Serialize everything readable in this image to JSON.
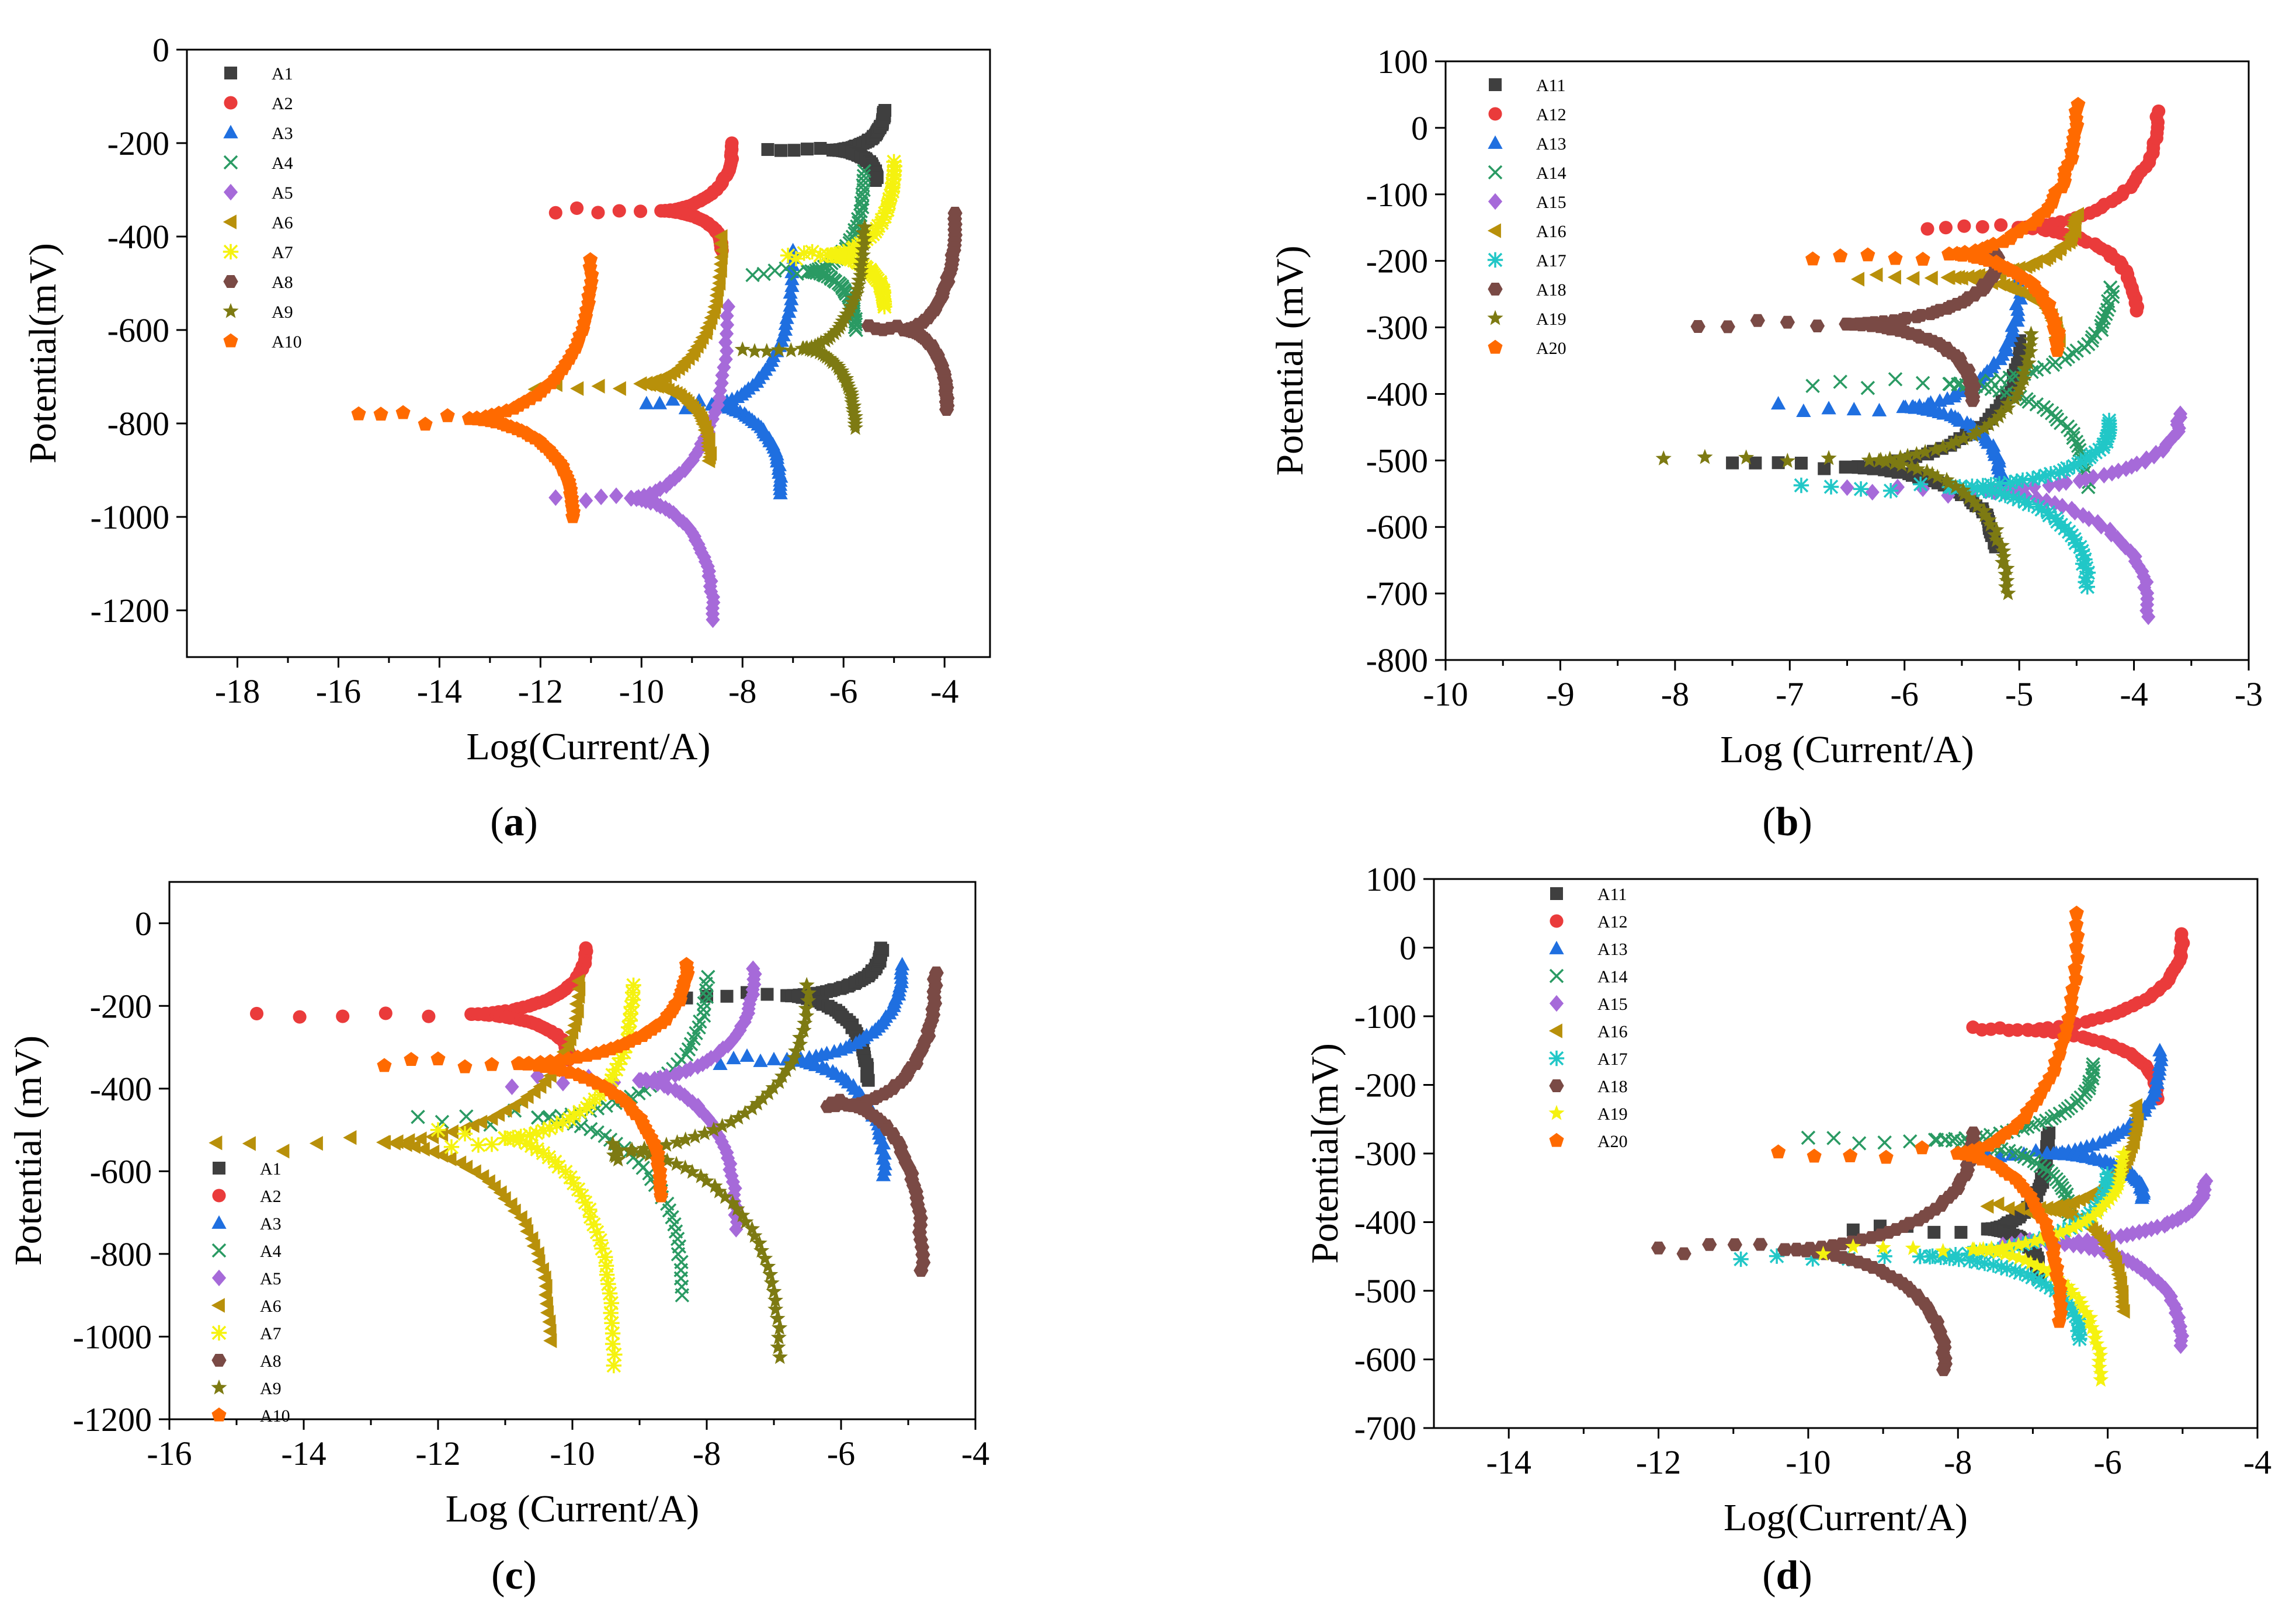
{
  "chart_data": [
    {
      "type": "scatter",
      "panel": "a",
      "caption_letter": "a",
      "xlabel": "Log(Current/A)",
      "ylabel": "Potential(mV)",
      "xlim": [
        -19,
        -3.1
      ],
      "ylim": [
        -1300,
        0
      ],
      "xticks": [
        -18,
        -16,
        -14,
        -12,
        -10,
        -8,
        -6,
        -4
      ],
      "yticks": [
        0,
        -200,
        -400,
        -600,
        -800,
        -1000,
        -1200
      ],
      "legend_position": "top-left",
      "series": [
        {
          "name": "A1",
          "marker": "square",
          "color": "#3f3f3f",
          "ecorr": -215,
          "icorr": -6.2,
          "xmin": -7.5,
          "xmax": -5.2,
          "ymin": -280,
          "ymax": -130
        },
        {
          "name": "A2",
          "marker": "circle",
          "color": "#ea3b3b",
          "ecorr": -345,
          "icorr": -9.6,
          "xmin": -11.7,
          "xmax": -8.2,
          "ymin": -430,
          "ymax": -200
        },
        {
          "name": "A3",
          "marker": "triangle",
          "color": "#1f6fe0",
          "ecorr": -760,
          "icorr": -8.6,
          "xmin": -9.9,
          "xmax": -7.0,
          "ymin": -950,
          "ymax": -430
        },
        {
          "name": "A4",
          "marker": "x",
          "color": "#2a9a63",
          "ecorr": -475,
          "icorr": -6.7,
          "xmin": -7.8,
          "xmax": -5.6,
          "ymin": -600,
          "ymax": -260
        },
        {
          "name": "A5",
          "marker": "diamond",
          "color": "#a66ad9",
          "ecorr": -960,
          "icorr": -10.2,
          "xmin": -11.7,
          "xmax": -8.3,
          "ymin": -1220,
          "ymax": -550
        },
        {
          "name": "A6",
          "marker": "tri-left",
          "color": "#b8900a",
          "ecorr": -715,
          "icorr": -10.0,
          "xmin": -12.1,
          "xmax": -8.4,
          "ymin": -880,
          "ymax": -400
        },
        {
          "name": "A7",
          "marker": "asterisk",
          "color": "#f5f20f",
          "ecorr": -440,
          "icorr": -6.3,
          "xmin": -7.1,
          "xmax": -5.0,
          "ymin": -550,
          "ymax": -240
        },
        {
          "name": "A8",
          "marker": "hexagon",
          "color": "#7a4a45",
          "ecorr": -600,
          "icorr": -4.8,
          "xmin": -5.5,
          "xmax": -3.8,
          "ymin": -770,
          "ymax": -350
        },
        {
          "name": "A9",
          "marker": "star",
          "color": "#7d7a12",
          "ecorr": -640,
          "icorr": -6.8,
          "xmin": -8.0,
          "xmax": -5.6,
          "ymin": -810,
          "ymax": -380
        },
        {
          "name": "A10",
          "marker": "pentagon",
          "color": "#ff6a00",
          "ecorr": -790,
          "icorr": -13.4,
          "xmin": -15.6,
          "xmax": -11.0,
          "ymin": -1000,
          "ymax": -450
        }
      ]
    },
    {
      "type": "scatter",
      "panel": "b",
      "caption_letter": "b",
      "xlabel": "Log (Current/A)",
      "ylabel": "Potential (mV)",
      "xlim": [
        -10,
        -3
      ],
      "ylim": [
        -800,
        100
      ],
      "xticks": [
        -10,
        -9,
        -8,
        -7,
        -6,
        -5,
        -4,
        -3
      ],
      "yticks": [
        100,
        0,
        -100,
        -200,
        -300,
        -400,
        -500,
        -600,
        -700,
        -800
      ],
      "legend_position": "top-left",
      "series": [
        {
          "name": "A11",
          "marker": "square",
          "color": "#3f3f3f",
          "ecorr": -510,
          "icorr": -6.5,
          "xmin": -7.5,
          "xmax": -5.0,
          "ymin": -630,
          "ymax": -320
        },
        {
          "name": "A12",
          "marker": "circle",
          "color": "#ea3b3b",
          "ecorr": -150,
          "icorr": -5.0,
          "xmin": -5.8,
          "xmax": -3.8,
          "ymin": -275,
          "ymax": 25
        },
        {
          "name": "A13",
          "marker": "triangle",
          "color": "#1f6fe0",
          "ecorr": -420,
          "icorr": -6.0,
          "xmin": -7.1,
          "xmax": -5.0,
          "ymin": -540,
          "ymax": -230
        },
        {
          "name": "A14",
          "marker": "x",
          "color": "#2a9a63",
          "ecorr": -385,
          "icorr": -5.6,
          "xmin": -6.8,
          "xmax": -4.2,
          "ymin": -540,
          "ymax": -240
        },
        {
          "name": "A15",
          "marker": "diamond",
          "color": "#a66ad9",
          "ecorr": -545,
          "icorr": -5.4,
          "xmin": -6.5,
          "xmax": -3.6,
          "ymin": -735,
          "ymax": -430
        },
        {
          "name": "A16",
          "marker": "tri-left",
          "color": "#b8900a",
          "ecorr": -225,
          "icorr": -5.6,
          "xmin": -6.4,
          "xmax": -4.5,
          "ymin": -320,
          "ymax": -130
        },
        {
          "name": "A17",
          "marker": "asterisk",
          "color": "#21c7c7",
          "ecorr": -540,
          "icorr": -5.6,
          "xmin": -6.9,
          "xmax": -4.2,
          "ymin": -690,
          "ymax": -440
        },
        {
          "name": "A18",
          "marker": "hexagon",
          "color": "#7a4a45",
          "ecorr": -295,
          "icorr": -6.5,
          "xmin": -7.8,
          "xmax": -5.2,
          "ymin": -410,
          "ymax": -190
        },
        {
          "name": "A19",
          "marker": "star",
          "color": "#7d7a12",
          "ecorr": -500,
          "icorr": -6.3,
          "xmin": -8.1,
          "xmax": -4.9,
          "ymin": -700,
          "ymax": -310
        },
        {
          "name": "A20",
          "marker": "pentagon",
          "color": "#ff6a00",
          "ecorr": -190,
          "icorr": -5.6,
          "xmin": -6.8,
          "xmax": -4.5,
          "ymin": -335,
          "ymax": 35
        }
      ]
    },
    {
      "type": "scatter",
      "panel": "c",
      "caption_letter": "c",
      "xlabel": "Log (Current/A)",
      "ylabel": "Potential (mV)",
      "xlim": [
        -16,
        -4
      ],
      "ylim": [
        -1200,
        100
      ],
      "xticks": [
        -16,
        -14,
        -12,
        -10,
        -8,
        -6,
        -4
      ],
      "yticks": [
        0,
        -200,
        -400,
        -600,
        -800,
        -1000,
        -1200
      ],
      "legend_position": "bottom-left",
      "series": [
        {
          "name": "A1",
          "marker": "square",
          "color": "#3f3f3f",
          "ecorr": -175,
          "icorr": -6.8,
          "xmin": -8.3,
          "xmax": -5.4,
          "ymin": -380,
          "ymax": -60
        },
        {
          "name": "A2",
          "marker": "circle",
          "color": "#ea3b3b",
          "ecorr": -220,
          "icorr": -11.5,
          "xmin": -14.7,
          "xmax": -9.8,
          "ymin": -330,
          "ymax": -60
        },
        {
          "name": "A3",
          "marker": "triangle",
          "color": "#1f6fe0",
          "ecorr": -330,
          "icorr": -6.8,
          "xmin": -7.8,
          "xmax": -5.1,
          "ymin": -610,
          "ymax": -100
        },
        {
          "name": "A4",
          "marker": "x",
          "color": "#2a9a63",
          "ecorr": -470,
          "icorr": -10.5,
          "xmin": -12.3,
          "xmax": -8.0,
          "ymin": -900,
          "ymax": -130
        },
        {
          "name": "A5",
          "marker": "diamond",
          "color": "#a66ad9",
          "ecorr": -380,
          "icorr": -9.0,
          "xmin": -10.9,
          "xmax": -7.3,
          "ymin": -740,
          "ymax": -110
        },
        {
          "name": "A6",
          "marker": "tri-left",
          "color": "#b8900a",
          "ecorr": -530,
          "icorr": -12.8,
          "xmin": -15.3,
          "xmax": -9.9,
          "ymin": -1010,
          "ymax": -140
        },
        {
          "name": "A7",
          "marker": "asterisk",
          "color": "#f5f20f",
          "ecorr": -520,
          "icorr": -11.0,
          "xmin": -12.0,
          "xmax": -9.1,
          "ymin": -1070,
          "ymax": -150
        },
        {
          "name": "A8",
          "marker": "hexagon",
          "color": "#7a4a45",
          "ecorr": -440,
          "icorr": -5.9,
          "xmin": -6.2,
          "xmax": -4.6,
          "ymin": -840,
          "ymax": -120
        },
        {
          "name": "A9",
          "marker": "star",
          "color": "#7d7a12",
          "ecorr": -550,
          "icorr": -9.3,
          "xmin": -9.4,
          "xmax": -6.5,
          "ymin": -1050,
          "ymax": -150
        },
        {
          "name": "A10",
          "marker": "pentagon",
          "color": "#ff6a00",
          "ecorr": -340,
          "icorr": -10.8,
          "xmin": -12.8,
          "xmax": -8.3,
          "ymin": -660,
          "ymax": -100
        }
      ]
    },
    {
      "type": "scatter",
      "panel": "d",
      "caption_letter": "d",
      "xlabel": "Log(Current/A)",
      "ylabel": "Potential(mV)",
      "xlim": [
        -15,
        -4
      ],
      "ylim": [
        -700,
        100
      ],
      "xticks": [
        -14,
        -12,
        -10,
        -8,
        -6,
        -4
      ],
      "yticks": [
        100,
        0,
        -100,
        -200,
        -300,
        -400,
        -500,
        -600,
        -700
      ],
      "legend_position": "top-left",
      "series": [
        {
          "name": "A11",
          "marker": "square",
          "color": "#3f3f3f",
          "ecorr": -410,
          "icorr": -7.6,
          "xmin": -9.4,
          "xmax": -6.8,
          "ymin": -480,
          "ymax": -270
        },
        {
          "name": "A12",
          "marker": "circle",
          "color": "#ea3b3b",
          "ecorr": -120,
          "icorr": -7.2,
          "xmin": -7.8,
          "xmax": -5.0,
          "ymin": -220,
          "ymax": 20
        },
        {
          "name": "A13",
          "marker": "triangle",
          "color": "#1f6fe0",
          "ecorr": -300,
          "icorr": -6.8,
          "xmin": -7.6,
          "xmax": -5.3,
          "ymin": -365,
          "ymax": -150
        },
        {
          "name": "A14",
          "marker": "x",
          "color": "#2a9a63",
          "ecorr": -280,
          "icorr": -8.3,
          "xmin": -10.0,
          "xmax": -6.2,
          "ymin": -390,
          "ymax": -170
        },
        {
          "name": "A15",
          "marker": "diamond",
          "color": "#a66ad9",
          "ecorr": -430,
          "icorr": -6.8,
          "xmin": -7.4,
          "xmax": -4.7,
          "ymin": -580,
          "ymax": -340
        },
        {
          "name": "A16",
          "marker": "tri-left",
          "color": "#b8900a",
          "ecorr": -380,
          "icorr": -6.9,
          "xmin": -7.6,
          "xmax": -5.6,
          "ymin": -530,
          "ymax": -230
        },
        {
          "name": "A17",
          "marker": "asterisk",
          "color": "#21c7c7",
          "ecorr": -450,
          "icorr": -8.5,
          "xmin": -10.9,
          "xmax": -6.0,
          "ymin": -570,
          "ymax": -330
        },
        {
          "name": "A18",
          "marker": "hexagon",
          "color": "#7a4a45",
          "ecorr": -440,
          "icorr": -10.3,
          "xmin": -12.0,
          "xmax": -7.8,
          "ymin": -615,
          "ymax": -270
        },
        {
          "name": "A19",
          "marker": "star",
          "color": "#f5f20f",
          "ecorr": -440,
          "icorr": -7.8,
          "xmin": -9.8,
          "xmax": -5.8,
          "ymin": -630,
          "ymax": -300
        },
        {
          "name": "A20",
          "marker": "pentagon",
          "color": "#ff6a00",
          "ecorr": -300,
          "icorr": -8.0,
          "xmin": -10.4,
          "xmax": -6.4,
          "ymin": -545,
          "ymax": 50
        }
      ]
    }
  ]
}
